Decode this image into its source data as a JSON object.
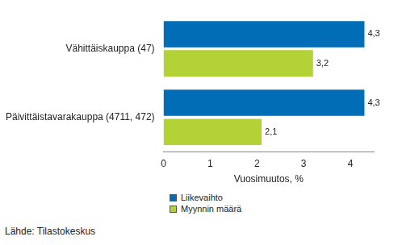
{
  "chart_data": {
    "type": "bar",
    "orientation": "horizontal",
    "categories": [
      "Vähittäiskauppa (47)",
      "Päivittäistavarakauppa (4711, 472)"
    ],
    "series": [
      {
        "name": "Liikevaihto",
        "color": "#006db6",
        "values": [
          4.3,
          4.3
        ],
        "value_labels": [
          "4,3",
          "4,3"
        ]
      },
      {
        "name": "Myynnin määrä",
        "color": "#b2d235",
        "values": [
          3.2,
          2.1
        ],
        "value_labels": [
          "3,2",
          "2,1"
        ]
      }
    ],
    "x_label": "Vuosimuutos, %",
    "xlim": [
      0,
      4.5
    ],
    "xticks": [
      0,
      1,
      2,
      3,
      4
    ],
    "grid": false,
    "legend": "bottom",
    "data_labels": true,
    "source": "Lähde: Tilastokeskus"
  }
}
